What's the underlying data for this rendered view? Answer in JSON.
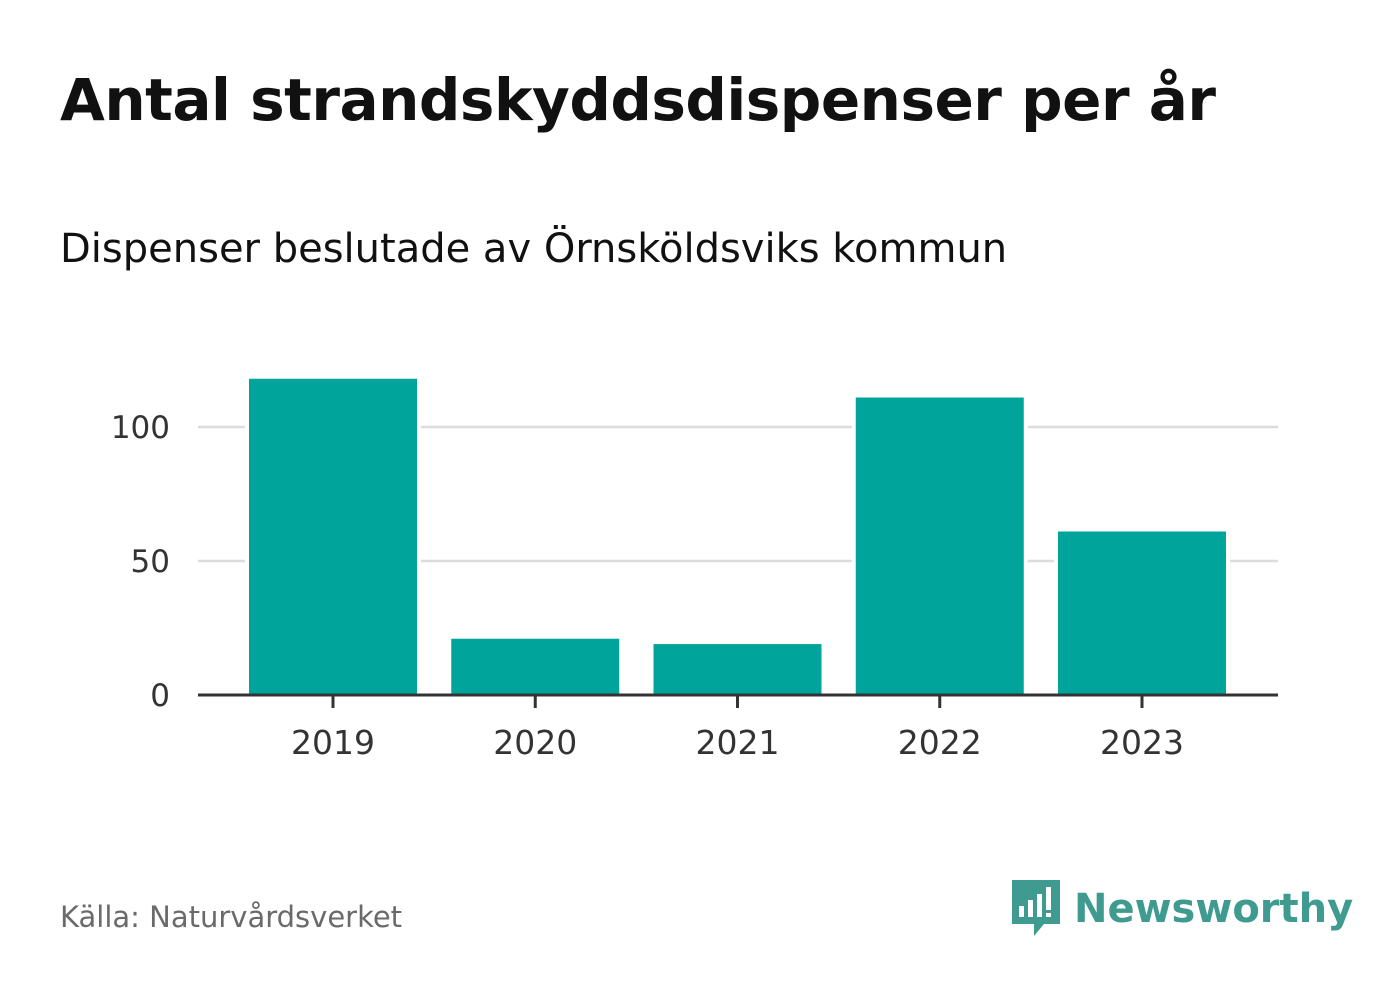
{
  "title": "Antal strandskyddsdispenser per år",
  "subtitle": "Dispenser beslutade av Örnsköldsviks kommun",
  "source": "Källa: Naturvårdsverket",
  "brand": {
    "name": "Newsworthy",
    "icon": "newsworthy-logo-icon"
  },
  "colors": {
    "bar": "#00a49a",
    "grid": "#dcdcdc",
    "axis": "#333333",
    "tick_text": "#333333",
    "brand": "#3f9a90"
  },
  "chart_data": {
    "type": "bar",
    "title": "Antal strandskyddsdispenser per år",
    "subtitle": "Dispenser beslutade av Örnsköldsviks kommun",
    "categories": [
      "2019",
      "2020",
      "2021",
      "2022",
      "2023"
    ],
    "values": [
      118,
      21,
      19,
      111,
      61
    ],
    "yticks": [
      0,
      50,
      100
    ],
    "ylim": [
      0,
      120
    ],
    "xlabel": "",
    "ylabel": "",
    "grid": true,
    "legend": "none"
  }
}
